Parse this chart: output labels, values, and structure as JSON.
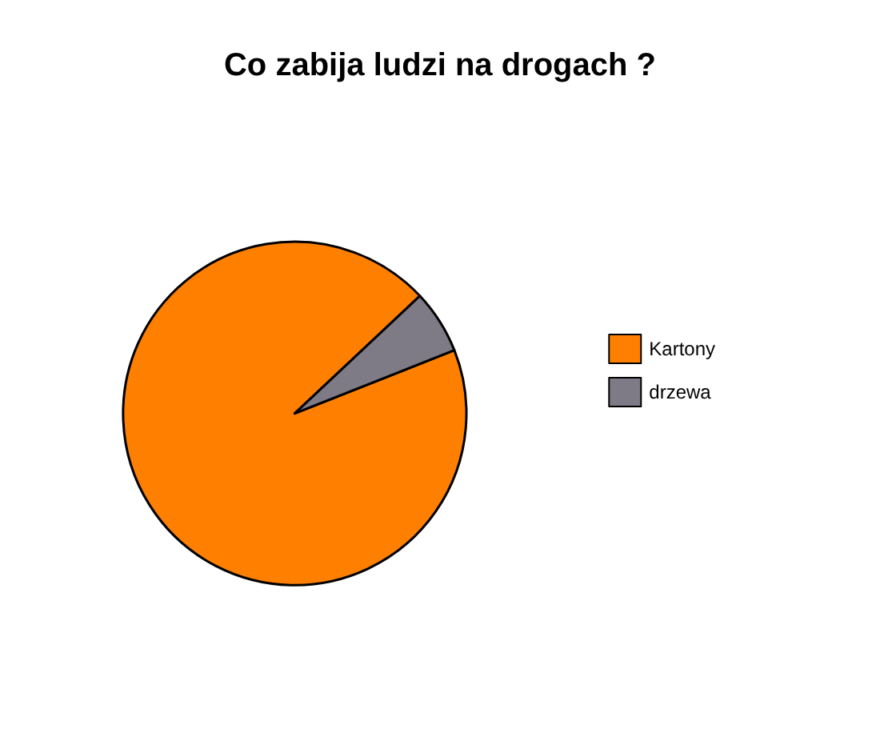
{
  "chart_data": {
    "type": "pie",
    "title": "Co zabija ludzi na drogach ?",
    "categories": [
      "Kartony",
      "drzewa"
    ],
    "values": [
      94,
      6
    ],
    "colors": [
      "#ff8000",
      "#7f7b86"
    ],
    "legend": "right"
  }
}
